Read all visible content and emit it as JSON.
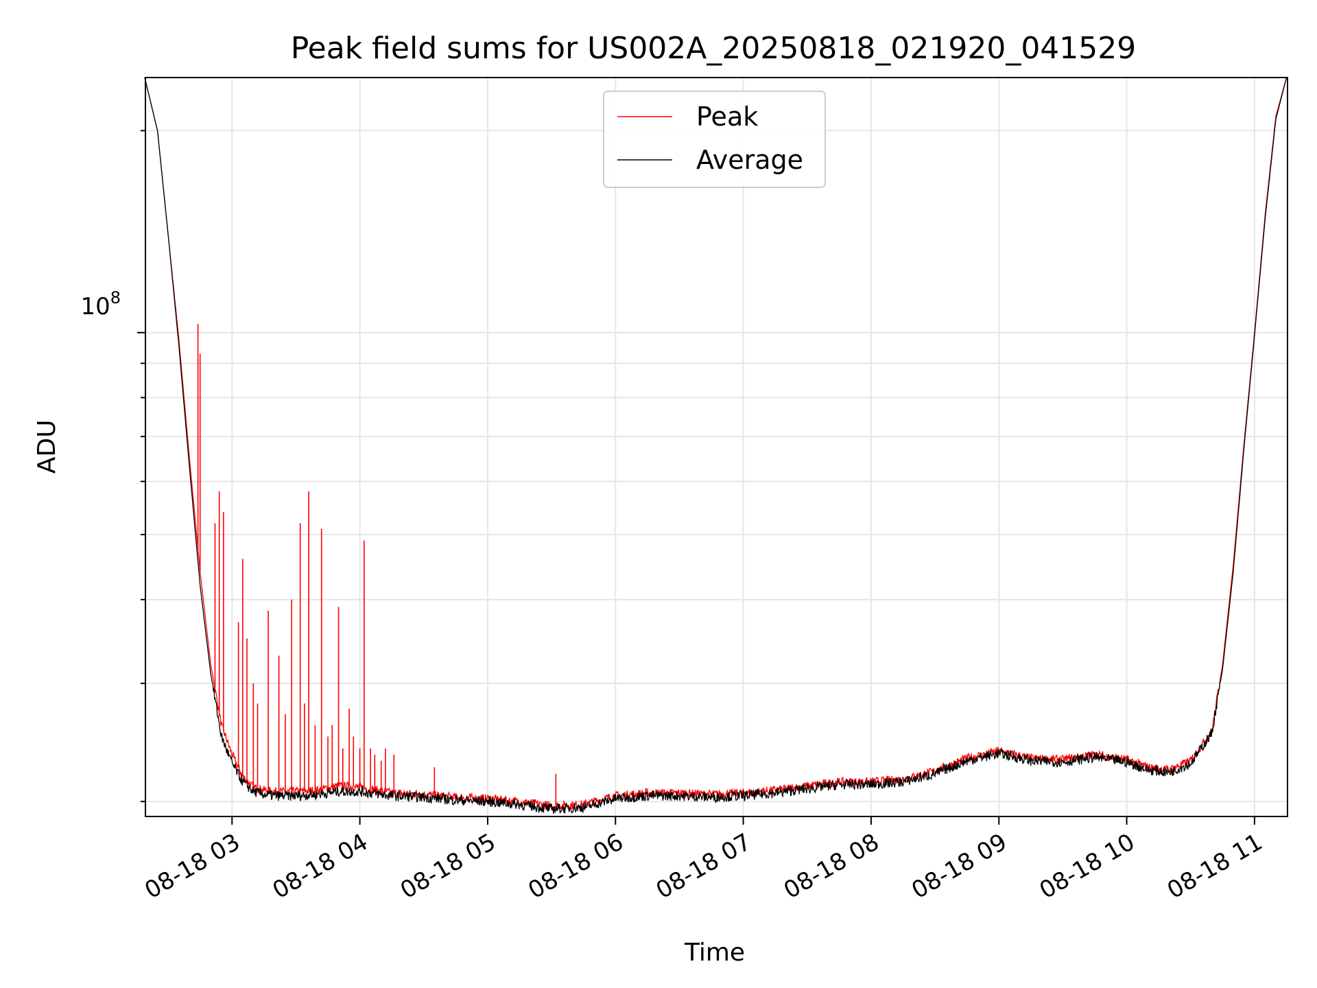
{
  "chart_data": {
    "type": "line",
    "title": "Peak field sums for US002A_20250818_021920_041529",
    "xlabel": "Time",
    "ylabel": "ADU",
    "xscale": "time",
    "yscale": "log",
    "grid": true,
    "legend_placement": "top-center",
    "x_ticks": [
      "08-18 03",
      "08-18 04",
      "08-18 05",
      "08-18 06",
      "08-18 07",
      "08-18 08",
      "08-18 09",
      "08-18 10",
      "08-18 11"
    ],
    "xlim": [
      "2025-08-18 02:19:20",
      "2025-08-18 11:15:29"
    ],
    "y_tick_label_base": "10",
    "y_tick_label_exp": "8",
    "ylim": [
      19000000,
      240000000
    ],
    "series": [
      {
        "name": "Peak",
        "color": "#ff0000",
        "x": [
          "02:19",
          "02:25",
          "02:30",
          "02:35",
          "02:40",
          "02:45",
          "02:50",
          "02:55",
          "03:00",
          "03:05",
          "03:10",
          "03:15",
          "03:20",
          "03:30",
          "03:40",
          "03:50",
          "04:00",
          "04:15",
          "04:30",
          "04:45",
          "05:00",
          "05:15",
          "05:30",
          "05:45",
          "06:00",
          "06:15",
          "06:30",
          "06:45",
          "07:00",
          "07:15",
          "07:30",
          "07:45",
          "08:00",
          "08:15",
          "08:30",
          "08:45",
          "09:00",
          "09:15",
          "09:30",
          "09:45",
          "10:00",
          "10:10",
          "10:20",
          "10:30",
          "10:40",
          "10:45",
          "10:50",
          "10:55",
          "11:00",
          "11:05",
          "11:10",
          "11:15"
        ],
        "y": [
          240000000,
          200000000,
          140000000,
          98000000,
          65000000,
          44000000,
          32000000,
          26000000,
          23500000,
          21800000,
          21000000,
          20800000,
          20700000,
          20700000,
          20800000,
          21100000,
          21000000,
          20600000,
          20500000,
          20300000,
          20200000,
          20000000,
          19700000,
          19800000,
          20400000,
          20600000,
          20600000,
          20500000,
          20600000,
          20800000,
          21100000,
          21400000,
          21400000,
          21600000,
          22200000,
          23200000,
          23800000,
          23200000,
          23100000,
          23500000,
          23100000,
          22500000,
          22300000,
          23000000,
          25500000,
          32000000,
          45000000,
          68000000,
          100000000,
          150000000,
          210000000,
          240000000
        ],
        "spikes": [
          {
            "x": "02:44",
            "y": 103000000
          },
          {
            "x": "02:45",
            "y": 93000000
          },
          {
            "x": "02:52",
            "y": 52000000
          },
          {
            "x": "02:54",
            "y": 58000000
          },
          {
            "x": "02:56",
            "y": 54000000
          },
          {
            "x": "03:03",
            "y": 37000000
          },
          {
            "x": "03:05",
            "y": 46000000
          },
          {
            "x": "03:07",
            "y": 35000000
          },
          {
            "x": "03:10",
            "y": 30000000
          },
          {
            "x": "03:12",
            "y": 28000000
          },
          {
            "x": "03:17",
            "y": 38500000
          },
          {
            "x": "03:22",
            "y": 33000000
          },
          {
            "x": "03:25",
            "y": 27000000
          },
          {
            "x": "03:28",
            "y": 40000000
          },
          {
            "x": "03:32",
            "y": 52000000
          },
          {
            "x": "03:34",
            "y": 28000000
          },
          {
            "x": "03:36",
            "y": 58000000
          },
          {
            "x": "03:39",
            "y": 26000000
          },
          {
            "x": "03:42",
            "y": 51000000
          },
          {
            "x": "03:45",
            "y": 25000000
          },
          {
            "x": "03:47",
            "y": 26000000
          },
          {
            "x": "03:50",
            "y": 39000000
          },
          {
            "x": "03:52",
            "y": 24000000
          },
          {
            "x": "03:55",
            "y": 27500000
          },
          {
            "x": "03:57",
            "y": 25000000
          },
          {
            "x": "04:00",
            "y": 24000000
          },
          {
            "x": "04:02",
            "y": 49000000
          },
          {
            "x": "04:05",
            "y": 24000000
          },
          {
            "x": "04:07",
            "y": 23500000
          },
          {
            "x": "04:10",
            "y": 23000000
          },
          {
            "x": "04:12",
            "y": 24000000
          },
          {
            "x": "04:16",
            "y": 23500000
          },
          {
            "x": "04:35",
            "y": 22500000
          },
          {
            "x": "05:32",
            "y": 22000000
          }
        ]
      },
      {
        "name": "Average",
        "color": "#000000",
        "x": [
          "02:19",
          "02:25",
          "02:30",
          "02:35",
          "02:40",
          "02:45",
          "02:50",
          "02:55",
          "03:00",
          "03:05",
          "03:10",
          "03:15",
          "03:20",
          "03:30",
          "03:40",
          "03:50",
          "04:00",
          "04:15",
          "04:30",
          "04:45",
          "05:00",
          "05:15",
          "05:30",
          "05:45",
          "06:00",
          "06:15",
          "06:30",
          "06:45",
          "07:00",
          "07:15",
          "07:30",
          "07:45",
          "08:00",
          "08:15",
          "08:30",
          "08:45",
          "09:00",
          "09:15",
          "09:30",
          "09:45",
          "10:00",
          "10:10",
          "10:20",
          "10:30",
          "10:40",
          "10:45",
          "10:50",
          "10:55",
          "11:00",
          "11:05",
          "11:10",
          "11:15"
        ],
        "y": [
          240000000,
          200000000,
          140000000,
          96000000,
          63000000,
          42000000,
          31000000,
          25000000,
          22800000,
          21400000,
          20700000,
          20500000,
          20400000,
          20400000,
          20500000,
          20700000,
          20700000,
          20400000,
          20300000,
          20100000,
          20000000,
          19800000,
          19500000,
          19600000,
          20200000,
          20400000,
          20400000,
          20300000,
          20400000,
          20600000,
          20900000,
          21200000,
          21200000,
          21400000,
          22000000,
          23000000,
          23600000,
          23000000,
          22900000,
          23300000,
          22900000,
          22300000,
          22100000,
          22800000,
          25300000,
          31500000,
          44000000,
          67000000,
          99000000,
          148000000,
          208000000,
          240000000
        ]
      }
    ]
  }
}
